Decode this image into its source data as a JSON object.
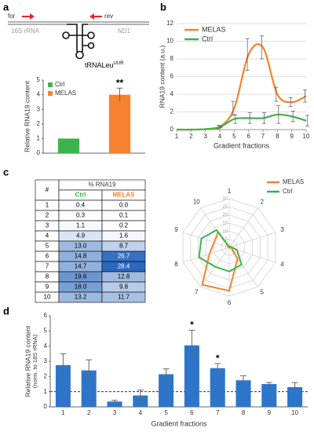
{
  "panels": [
    "a",
    "b",
    "c",
    "d"
  ],
  "schematic": {
    "forward": "for",
    "reverse": "rev",
    "gene_left": "16S rRNA",
    "gene_right": "ND1",
    "trna": "tRNALeu",
    "trna_sup": "UUR"
  },
  "table": {
    "header": [
      "#",
      "% RNA19"
    ],
    "columns": [
      "Ctrl",
      "MELAS"
    ],
    "rows": [
      [
        "1",
        "0.4",
        "0.0"
      ],
      [
        "2",
        "0.3",
        "0.1"
      ],
      [
        "3",
        "1.1",
        "0.2"
      ],
      [
        "4",
        "4.9",
        "1.6"
      ],
      [
        "5",
        "13.0",
        "8.7"
      ],
      [
        "6",
        "14.8",
        "26.7"
      ],
      [
        "7",
        "14.7",
        "28.4"
      ],
      [
        "8",
        "19.6",
        "12.8"
      ],
      [
        "9",
        "18.0",
        "9.8"
      ],
      [
        "10",
        "13.2",
        "11.7"
      ]
    ]
  },
  "chart_data": [
    {
      "type": "bar",
      "ylabel": "Relative RNA19 content",
      "categories": [
        "Ctrl",
        "MELAS"
      ],
      "values": [
        1,
        4.0
      ],
      "errors": [
        0,
        0.45
      ],
      "colors": [
        "#3cb44b",
        "#f5822f"
      ],
      "annotations": [
        null,
        "**"
      ],
      "ylim": [
        0,
        5
      ],
      "yticks": [
        0,
        1,
        2,
        3,
        4,
        5
      ],
      "legend": "top-left"
    },
    {
      "type": "line",
      "ylabel": "RNA19 content (a.u.)",
      "xlabel": "Gradient fractions",
      "x": [
        1,
        2,
        3,
        4,
        5,
        6,
        7,
        8,
        9,
        10
      ],
      "series": [
        {
          "name": "MELAS",
          "color": "#f5822f",
          "values": [
            0,
            0,
            0.05,
            0.3,
            2.4,
            8.5,
            9.3,
            4.0,
            3.1,
            3.8
          ],
          "errors": [
            0,
            0,
            0,
            0.2,
            0.8,
            1.8,
            1.3,
            0.8,
            0.5,
            0.7
          ]
        },
        {
          "name": "Ctrl",
          "color": "#3cb44b",
          "values": [
            0,
            0,
            0.05,
            0.3,
            1.2,
            1.3,
            1.3,
            1.7,
            1.5,
            1.0
          ],
          "errors": [
            0,
            0,
            0,
            0.1,
            0.5,
            0.6,
            0.6,
            1.0,
            0.6,
            0.6
          ]
        }
      ],
      "xlim": [
        1,
        10
      ],
      "xticks": [
        1,
        2,
        3,
        4,
        5,
        6,
        7,
        8,
        9,
        10
      ],
      "ylim": [
        0,
        12
      ],
      "yticks": [
        0,
        2,
        4,
        6,
        8,
        10,
        12
      ],
      "grid": true,
      "legend": "top-left"
    },
    {
      "type": "radar",
      "categories": [
        "1",
        "2",
        "3",
        "4",
        "5",
        "6",
        "7",
        "8",
        "9",
        "10"
      ],
      "series": [
        {
          "name": "MELAS",
          "color": "#f5822f",
          "values": [
            0.0,
            0.1,
            0.2,
            1.6,
            8.7,
            26.7,
            28.4,
            12.8,
            9.8,
            11.7
          ]
        },
        {
          "name": "Ctrl",
          "color": "#3cb44b",
          "values": [
            0.4,
            0.3,
            1.1,
            4.9,
            13.0,
            14.8,
            14.7,
            19.6,
            18.0,
            13.2
          ]
        }
      ],
      "rlim": [
        0,
        30
      ],
      "rticks": [
        0,
        5,
        10,
        15,
        20,
        25,
        30
      ],
      "legend": "top-right"
    },
    {
      "type": "bar",
      "ylabel": "Relative RNA19 content",
      "ylabel2": "(norm. to 18S rRNA)",
      "xlabel": "Gradient fractions",
      "categories": [
        "1",
        "2",
        "3",
        "4",
        "5",
        "6",
        "7",
        "8",
        "9",
        "10"
      ],
      "values": [
        2.75,
        2.4,
        0.35,
        0.75,
        2.15,
        4.05,
        2.55,
        1.75,
        1.5,
        1.3
      ],
      "errors": [
        0.75,
        0.7,
        0.08,
        0.35,
        0.35,
        1.0,
        0.3,
        0.3,
        0.1,
        0.3
      ],
      "color": "#2e75c9",
      "annotations": [
        null,
        null,
        null,
        null,
        null,
        "*",
        "*",
        null,
        null,
        null
      ],
      "reference_line": 1,
      "ylim": [
        0,
        6
      ],
      "yticks": [
        0,
        1,
        2,
        3,
        4,
        5,
        6
      ]
    }
  ]
}
